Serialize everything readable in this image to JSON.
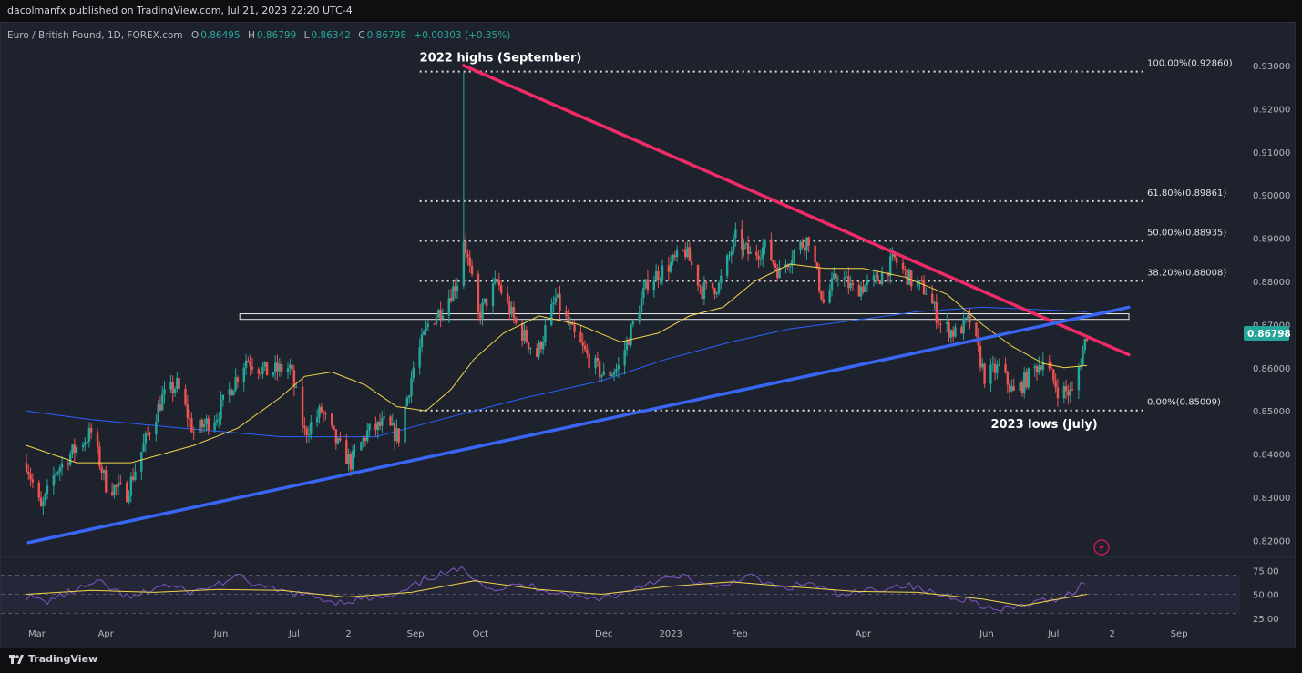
{
  "header": {
    "published": "dacolmanfx published on TradingView.com, Jul 21, 2023 22:20 UTC-4",
    "symbol": "Euro / British Pound, 1D, FOREX.com",
    "o_label": "O",
    "o": "0.86495",
    "h_label": "H",
    "h": "0.86799",
    "l_label": "L",
    "l": "0.86342",
    "c_label": "C",
    "c": "0.86798",
    "change": "+0.00303 (+0.35%)"
  },
  "footer": {
    "brand": "TradingView"
  },
  "colors": {
    "background": "#1e222d",
    "up_candle": "#26a69a",
    "down_candle": "#ef5350",
    "ma_short": "#f2d64b",
    "ma_long": "#2962ff",
    "resistance_trendline": "#f02b68",
    "support_trendline": "#3a66f5",
    "rsi_line": "#7e57c2",
    "rsi_ma": "#f2d64b",
    "price_tag": "#26a69a"
  },
  "chart_data": {
    "type": "candlestick",
    "title": "Euro / British Pound, 1D, FOREX.com",
    "ylim": [
      0.8165,
      0.935
    ],
    "y_ticks": [
      "0.93000",
      "0.92000",
      "0.91000",
      "0.90000",
      "0.89000",
      "0.88000",
      "0.87000",
      "0.86000",
      "0.85000",
      "0.84000",
      "0.83000",
      "0.82000"
    ],
    "x_ticks": [
      "Mar",
      "Apr",
      "Jun",
      "Jul",
      "2",
      "Sep",
      "Oct",
      "Dec",
      "2023",
      "Feb",
      "Apr",
      "Jun",
      "Jul",
      "2",
      "Sep"
    ],
    "last_price": "0.86798",
    "price_path": [
      [
        "2022-03-01",
        0.838
      ],
      [
        "2022-03-08",
        0.827
      ],
      [
        "2022-03-15",
        0.836
      ],
      [
        "2022-03-24",
        0.841
      ],
      [
        "2022-04-01",
        0.845
      ],
      [
        "2022-04-08",
        0.833
      ],
      [
        "2022-04-18",
        0.831
      ],
      [
        "2022-04-26",
        0.842
      ],
      [
        "2022-05-05",
        0.853
      ],
      [
        "2022-05-12",
        0.856
      ],
      [
        "2022-05-20",
        0.845
      ],
      [
        "2022-05-31",
        0.849
      ],
      [
        "2022-06-14",
        0.862
      ],
      [
        "2022-06-24",
        0.859
      ],
      [
        "2022-07-05",
        0.86
      ],
      [
        "2022-07-12",
        0.845
      ],
      [
        "2022-07-20",
        0.85
      ],
      [
        "2022-07-28",
        0.842
      ],
      [
        "2022-08-03",
        0.838
      ],
      [
        "2022-08-11",
        0.845
      ],
      [
        "2022-08-19",
        0.847
      ],
      [
        "2022-08-26",
        0.844
      ],
      [
        "2022-09-02",
        0.86
      ],
      [
        "2022-09-09",
        0.87
      ],
      [
        "2022-09-16",
        0.874
      ],
      [
        "2022-09-23",
        0.88
      ],
      [
        "2022-09-26",
        0.89
      ],
      [
        "2022-10-03",
        0.872
      ],
      [
        "2022-10-12",
        0.88
      ],
      [
        "2022-10-21",
        0.87
      ],
      [
        "2022-10-31",
        0.863
      ],
      [
        "2022-11-09",
        0.876
      ],
      [
        "2022-11-17",
        0.868
      ],
      [
        "2022-11-25",
        0.862
      ],
      [
        "2022-12-02",
        0.858
      ],
      [
        "2022-12-09",
        0.86
      ],
      [
        "2022-12-16",
        0.87
      ],
      [
        "2022-12-23",
        0.88
      ],
      [
        "2023-01-03",
        0.884
      ],
      [
        "2023-01-10",
        0.887
      ],
      [
        "2023-01-18",
        0.878
      ],
      [
        "2023-01-26",
        0.879
      ],
      [
        "2023-02-03",
        0.89
      ],
      [
        "2023-02-10",
        0.886
      ],
      [
        "2023-02-17",
        0.888
      ],
      [
        "2023-02-24",
        0.882
      ],
      [
        "2023-03-03",
        0.887
      ],
      [
        "2023-03-10",
        0.89
      ],
      [
        "2023-03-17",
        0.875
      ],
      [
        "2023-03-24",
        0.882
      ],
      [
        "2023-03-31",
        0.878
      ],
      [
        "2023-04-11",
        0.88
      ],
      [
        "2023-04-20",
        0.885
      ],
      [
        "2023-04-28",
        0.88
      ],
      [
        "2023-05-05",
        0.878
      ],
      [
        "2023-05-12",
        0.87
      ],
      [
        "2023-05-19",
        0.868
      ],
      [
        "2023-05-26",
        0.871
      ],
      [
        "2023-06-02",
        0.858
      ],
      [
        "2023-06-09",
        0.86
      ],
      [
        "2023-06-16",
        0.854
      ],
      [
        "2023-06-23",
        0.858
      ],
      [
        "2023-06-30",
        0.862
      ],
      [
        "2023-07-07",
        0.855
      ],
      [
        "2023-07-14",
        0.854
      ],
      [
        "2023-07-21",
        0.868
      ]
    ],
    "ma_short_path": [
      [
        "2022-03-01",
        0.842
      ],
      [
        "2022-03-25",
        0.838
      ],
      [
        "2022-04-20",
        0.838
      ],
      [
        "2022-05-20",
        0.842
      ],
      [
        "2022-06-10",
        0.846
      ],
      [
        "2022-06-30",
        0.853
      ],
      [
        "2022-07-12",
        0.858
      ],
      [
        "2022-07-25",
        0.859
      ],
      [
        "2022-08-10",
        0.856
      ],
      [
        "2022-08-25",
        0.851
      ],
      [
        "2022-09-08",
        0.85
      ],
      [
        "2022-09-20",
        0.855
      ],
      [
        "2022-10-01",
        0.862
      ],
      [
        "2022-10-15",
        0.868
      ],
      [
        "2022-11-01",
        0.872
      ],
      [
        "2022-11-20",
        0.87
      ],
      [
        "2022-12-10",
        0.866
      ],
      [
        "2022-12-28",
        0.868
      ],
      [
        "2023-01-12",
        0.872
      ],
      [
        "2023-01-28",
        0.874
      ],
      [
        "2023-02-12",
        0.88
      ],
      [
        "2023-03-01",
        0.884
      ],
      [
        "2023-03-18",
        0.883
      ],
      [
        "2023-04-05",
        0.883
      ],
      [
        "2023-04-25",
        0.881
      ],
      [
        "2023-05-15",
        0.877
      ],
      [
        "2023-06-01",
        0.87
      ],
      [
        "2023-06-15",
        0.865
      ],
      [
        "2023-06-30",
        0.861
      ],
      [
        "2023-07-10",
        0.86
      ],
      [
        "2023-07-21",
        0.8605
      ]
    ],
    "ma_long_path": [
      [
        "2022-03-01",
        0.85
      ],
      [
        "2022-04-01",
        0.848
      ],
      [
        "2022-05-15",
        0.846
      ],
      [
        "2022-07-01",
        0.844
      ],
      [
        "2022-08-15",
        0.844
      ],
      [
        "2022-09-15",
        0.848
      ],
      [
        "2022-10-25",
        0.853
      ],
      [
        "2022-12-01",
        0.857
      ],
      [
        "2023-01-01",
        0.862
      ],
      [
        "2023-02-01",
        0.866
      ],
      [
        "2023-03-01",
        0.869
      ],
      [
        "2023-04-01",
        0.871
      ],
      [
        "2023-05-01",
        0.873
      ],
      [
        "2023-06-01",
        0.874
      ],
      [
        "2023-07-21",
        0.873
      ]
    ],
    "trendlines": [
      {
        "name": "resistance",
        "from": [
          "2022-09-26",
          0.93
        ],
        "to": [
          "2023-08-10",
          0.863
        ]
      },
      {
        "name": "support",
        "from": [
          "2022-03-02",
          0.8195
        ],
        "to": [
          "2023-08-10",
          0.874
        ]
      }
    ],
    "horizontal_zone": {
      "from_date": "2022-06-11",
      "to_date": "2023-08-10",
      "low": 0.8712,
      "high": 0.8725
    },
    "fibonacci": [
      {
        "label": "100.00%(0.92860)",
        "price": 0.9286
      },
      {
        "label": "61.80%(0.89861)",
        "price": 0.8986
      },
      {
        "label": "50.00%(0.88935)",
        "price": 0.8894
      },
      {
        "label": "38.20%(0.88008)",
        "price": 0.8801
      },
      {
        "label": "0.00%(0.85009)",
        "price": 0.8501
      }
    ],
    "fib_start_date": "2022-09-05",
    "fib_end_date": "2023-07-21",
    "annotations": [
      {
        "text": "2022 highs (September)",
        "date": "2022-09-05",
        "price": 0.931
      },
      {
        "text": "2023 lows (July)",
        "date": "2023-06-05",
        "price": 0.846
      }
    ],
    "rsi": {
      "ylim": [
        20,
        80
      ],
      "ticks": [
        "75.00",
        "50.00",
        "25.00"
      ],
      "levels": [
        70,
        50,
        30
      ],
      "line": [
        [
          "2022-03-01",
          48
        ],
        [
          "2022-03-10",
          42
        ],
        [
          "2022-03-25",
          55
        ],
        [
          "2022-04-05",
          62
        ],
        [
          "2022-04-20",
          45
        ],
        [
          "2022-05-05",
          60
        ],
        [
          "2022-05-20",
          52
        ],
        [
          "2022-06-10",
          68
        ],
        [
          "2022-06-25",
          55
        ],
        [
          "2022-07-10",
          50
        ],
        [
          "2022-07-28",
          42
        ],
        [
          "2022-08-10",
          45
        ],
        [
          "2022-08-25",
          48
        ],
        [
          "2022-09-10",
          68
        ],
        [
          "2022-09-26",
          76
        ],
        [
          "2022-10-10",
          55
        ],
        [
          "2022-10-25",
          60
        ],
        [
          "2022-11-10",
          52
        ],
        [
          "2022-11-25",
          45
        ],
        [
          "2022-12-10",
          50
        ],
        [
          "2022-12-25",
          64
        ],
        [
          "2023-01-10",
          68
        ],
        [
          "2023-01-25",
          55
        ],
        [
          "2023-02-08",
          70
        ],
        [
          "2023-02-25",
          55
        ],
        [
          "2023-03-10",
          62
        ],
        [
          "2023-03-25",
          48
        ],
        [
          "2023-04-10",
          55
        ],
        [
          "2023-04-25",
          60
        ],
        [
          "2023-05-10",
          50
        ],
        [
          "2023-05-25",
          45
        ],
        [
          "2023-06-08",
          32
        ],
        [
          "2023-06-20",
          38
        ],
        [
          "2023-07-05",
          45
        ],
        [
          "2023-07-14",
          52
        ],
        [
          "2023-07-21",
          66
        ]
      ],
      "ma": [
        [
          "2022-03-01",
          50
        ],
        [
          "2022-04-01",
          54
        ],
        [
          "2022-05-01",
          52
        ],
        [
          "2022-06-01",
          55
        ],
        [
          "2022-07-01",
          54
        ],
        [
          "2022-08-01",
          47
        ],
        [
          "2022-09-01",
          52
        ],
        [
          "2022-10-01",
          64
        ],
        [
          "2022-11-01",
          55
        ],
        [
          "2022-12-01",
          50
        ],
        [
          "2023-01-01",
          58
        ],
        [
          "2023-02-01",
          63
        ],
        [
          "2023-03-01",
          58
        ],
        [
          "2023-04-01",
          53
        ],
        [
          "2023-05-01",
          52
        ],
        [
          "2023-06-01",
          45
        ],
        [
          "2023-06-20",
          38
        ],
        [
          "2023-07-05",
          44
        ],
        [
          "2023-07-21",
          50
        ]
      ]
    }
  }
}
